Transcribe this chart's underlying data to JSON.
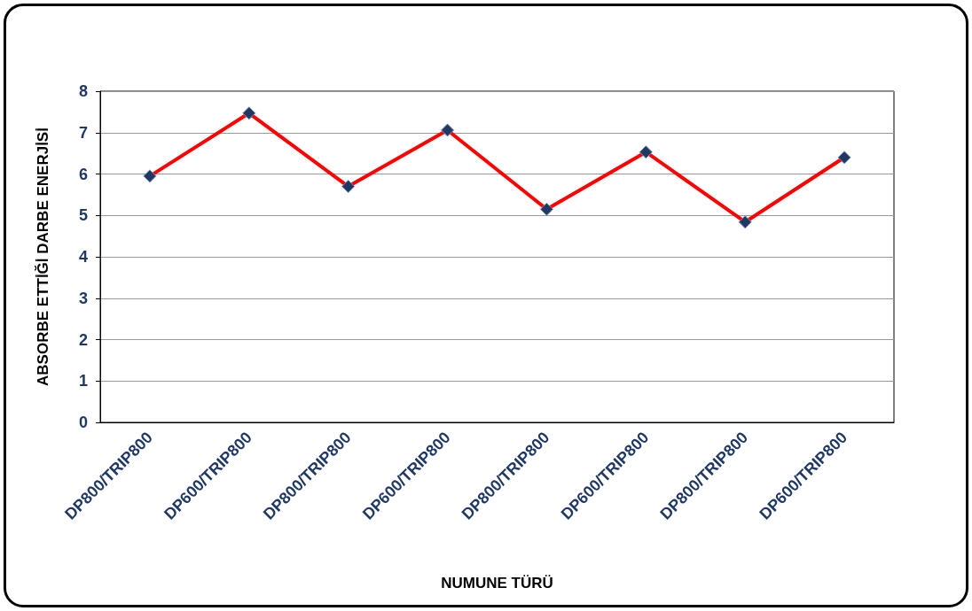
{
  "chart_data": {
    "type": "line",
    "xlabel": "NUMUNE TÜRÜ",
    "ylabel": "ABSORBE ETTİĞİ DARBE ENERJİSİ",
    "categories": [
      "DP800/TRIP800",
      "DP600/TRIP800",
      "DP800/TRIP800",
      "DP600/TRIP800",
      "DP800/TRIP800",
      "DP600/TRIP800",
      "DP800/TRIP800",
      "DP600/TRIP800"
    ],
    "series": [
      {
        "color": "#ff0000",
        "values": [
          5.95,
          7.47,
          5.7,
          7.06,
          5.15,
          6.53,
          4.84,
          6.4
        ]
      }
    ],
    "ylim": [
      0,
      8
    ],
    "yticks": [
      0,
      1,
      2,
      3,
      4,
      5,
      6,
      7,
      8
    ],
    "grid": "y",
    "marker": "diamond",
    "line_style": "solid"
  }
}
